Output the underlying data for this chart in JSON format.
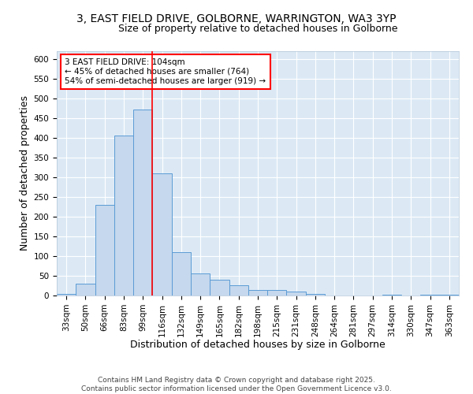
{
  "title_line1": "3, EAST FIELD DRIVE, GOLBORNE, WARRINGTON, WA3 3YP",
  "title_line2": "Size of property relative to detached houses in Golborne",
  "xlabel": "Distribution of detached houses by size in Golborne",
  "ylabel": "Number of detached properties",
  "categories": [
    "33sqm",
    "50sqm",
    "66sqm",
    "83sqm",
    "99sqm",
    "116sqm",
    "132sqm",
    "149sqm",
    "165sqm",
    "182sqm",
    "198sqm",
    "215sqm",
    "231sqm",
    "248sqm",
    "264sqm",
    "281sqm",
    "297sqm",
    "314sqm",
    "330sqm",
    "347sqm",
    "363sqm"
  ],
  "values": [
    5,
    31,
    230,
    407,
    472,
    310,
    110,
    56,
    41,
    26,
    15,
    15,
    10,
    4,
    0,
    0,
    0,
    3,
    0,
    3,
    3
  ],
  "bar_color": "#c5d8ed",
  "bar_edge_color": "#5b9bd5",
  "red_line_x": 4.5,
  "annotation_text": "3 EAST FIELD DRIVE: 104sqm\n← 45% of detached houses are smaller (764)\n54% of semi-detached houses are larger (919) →",
  "annotation_box_color": "white",
  "annotation_box_edge": "red",
  "ylim": [
    0,
    620
  ],
  "yticks": [
    0,
    50,
    100,
    150,
    200,
    250,
    300,
    350,
    400,
    450,
    500,
    550,
    600
  ],
  "background_color": "#dce9f5",
  "grid_color": "white",
  "footer_text": "Contains HM Land Registry data © Crown copyright and database right 2025.\nContains public sector information licensed under the Open Government Licence v3.0.",
  "title_fontsize": 10,
  "subtitle_fontsize": 9,
  "axis_label_fontsize": 9,
  "tick_fontsize": 7.5,
  "annotation_fontsize": 7.5,
  "footer_fontsize": 6.5
}
